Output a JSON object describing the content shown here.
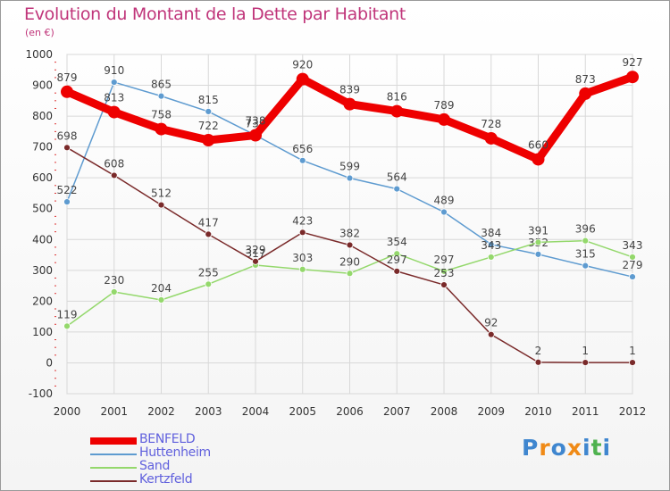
{
  "title": "Evolution du Montant de la Dette par Habitant",
  "unit": "(en €)",
  "logo": "Proxiti",
  "logo_colors": [
    "#3f86cf",
    "#f08a16",
    "#3f86cf",
    "#f08a16",
    "#3f86cf",
    "#4fb24f",
    "#3f86cf"
  ],
  "chart_data": {
    "type": "line",
    "x": [
      "2000",
      "2001",
      "2002",
      "2003",
      "2004",
      "2005",
      "2006",
      "2007",
      "2008",
      "2009",
      "2010",
      "2011",
      "2012"
    ],
    "ylim": [
      -100,
      1000
    ],
    "yticks": [
      "-100",
      "0",
      "100",
      "200",
      "300",
      "400",
      "500",
      "600",
      "700",
      "800",
      "900",
      "1000"
    ],
    "grid": true,
    "legend": "bottom-left",
    "series": [
      {
        "name": "Huttenheim",
        "color": "#5e9bd0",
        "values": [
          522,
          910,
          865,
          815,
          738,
          656,
          599,
          564,
          489,
          384,
          352,
          315,
          279
        ]
      },
      {
        "name": "Sand",
        "color": "#94d86c",
        "values": [
          119,
          230,
          204,
          255,
          317,
          303,
          290,
          354,
          297,
          343,
          391,
          396,
          343
        ]
      },
      {
        "name": "Kertzfeld",
        "color": "#7a2a2a",
        "values": [
          698,
          608,
          512,
          417,
          329,
          423,
          382,
          297,
          253,
          92,
          2,
          1,
          1
        ]
      },
      {
        "name": "BENFELD",
        "color": "#ee0000",
        "values": [
          879,
          813,
          758,
          722,
          738,
          920,
          839,
          816,
          789,
          728,
          660,
          873,
          927
        ]
      }
    ],
    "legend_order": [
      "BENFELD",
      "Huttenheim",
      "Sand",
      "Kertzfeld"
    ]
  }
}
